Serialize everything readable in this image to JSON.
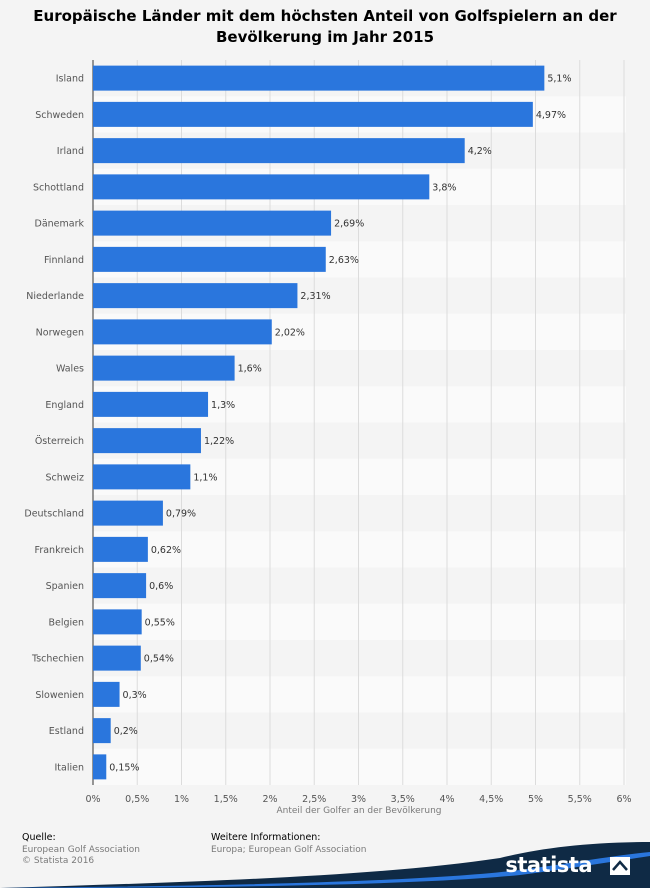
{
  "title": "Europäische Länder mit dem höchsten Anteil von Golfspielern an der Bevölkerung im Jahr 2015",
  "chart_data": {
    "type": "bar",
    "orientation": "horizontal",
    "title": "Europäische Länder mit dem höchsten Anteil von Golfspielern an der Bevölkerung im Jahr 2015",
    "xlabel": "Anteil der Golfer an der Bevölkerung",
    "ylabel": "",
    "xlim": [
      0,
      6
    ],
    "xticks": [
      "0%",
      "0,5%",
      "1%",
      "1,5%",
      "2%",
      "2,5%",
      "3%",
      "3,5%",
      "4%",
      "4,5%",
      "5%",
      "5,5%",
      "6%"
    ],
    "categories": [
      "Island",
      "Schweden",
      "Irland",
      "Schottland",
      "Dänemark",
      "Finnland",
      "Niederlande",
      "Norwegen",
      "Wales",
      "England",
      "Österreich",
      "Schweiz",
      "Deutschland",
      "Frankreich",
      "Spanien",
      "Belgien",
      "Tschechien",
      "Slowenien",
      "Estland",
      "Italien"
    ],
    "values": [
      5.1,
      4.97,
      4.2,
      3.8,
      2.69,
      2.63,
      2.31,
      2.02,
      1.6,
      1.3,
      1.22,
      1.1,
      0.79,
      0.62,
      0.6,
      0.55,
      0.54,
      0.3,
      0.2,
      0.15
    ],
    "value_labels": [
      "5,1%",
      "4,97%",
      "4,2%",
      "3,8%",
      "2,69%",
      "2,63%",
      "2,31%",
      "2,02%",
      "1,6%",
      "1,3%",
      "1,22%",
      "1,1%",
      "0,79%",
      "0,62%",
      "0,6%",
      "0,55%",
      "0,54%",
      "0,3%",
      "0,2%",
      "0,15%"
    ],
    "grid": true,
    "bar_color": "#2a76dd"
  },
  "footer": {
    "source_head": "Quelle:",
    "source_line1": "European Golf Association",
    "source_line2": "© Statista 2016",
    "info_head": "Weitere Informationen:",
    "info_line1": "Europa; European Golf Association"
  },
  "brand": {
    "name": "statista",
    "dark_color": "#0f2a45",
    "accent_color": "#2a76dd"
  }
}
